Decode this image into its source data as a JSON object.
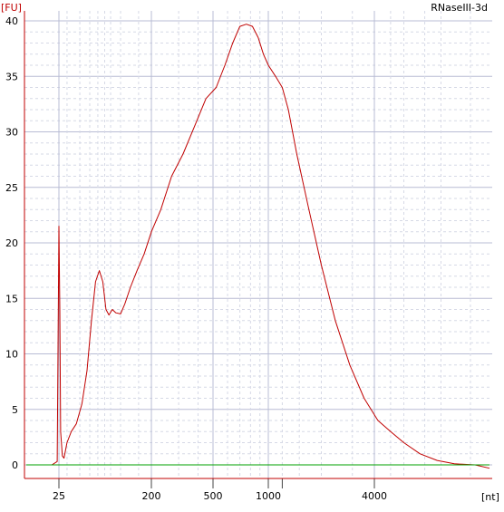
{
  "chart_data": {
    "type": "line",
    "title": "RNaseIII-3d",
    "ylabel": "[FU]",
    "xlabel": "[nt]",
    "x_scale": "log (electropherogram size axis)",
    "ylim": [
      0,
      40
    ],
    "y_ticks": [
      0,
      5,
      10,
      15,
      20,
      25,
      30,
      35,
      40
    ],
    "x_tick_labels": [
      "25",
      "200",
      "500",
      "1000",
      "4000"
    ],
    "grid": true,
    "series": [
      {
        "color": "#c00000",
        "x_unit": "nt",
        "points": [
          [
            17,
            0
          ],
          [
            23,
            0
          ],
          [
            24.5,
            0.3
          ],
          [
            25,
            21.5
          ],
          [
            25.5,
            14
          ],
          [
            26,
            3
          ],
          [
            27,
            0.8
          ],
          [
            28,
            0.6
          ],
          [
            30,
            2
          ],
          [
            33,
            3
          ],
          [
            37,
            3.7
          ],
          [
            42,
            5.5
          ],
          [
            47,
            8.5
          ],
          [
            52,
            13
          ],
          [
            57,
            16.5
          ],
          [
            62,
            17.5
          ],
          [
            67,
            16.5
          ],
          [
            72,
            14
          ],
          [
            77,
            13.5
          ],
          [
            83,
            14
          ],
          [
            90,
            13.7
          ],
          [
            100,
            13.6
          ],
          [
            110,
            14.5
          ],
          [
            125,
            16
          ],
          [
            145,
            17.5
          ],
          [
            170,
            19
          ],
          [
            200,
            21
          ],
          [
            230,
            23
          ],
          [
            270,
            26
          ],
          [
            320,
            28
          ],
          [
            380,
            30.5
          ],
          [
            450,
            33
          ],
          [
            520,
            34
          ],
          [
            580,
            36
          ],
          [
            640,
            38
          ],
          [
            700,
            39.5
          ],
          [
            760,
            39.7
          ],
          [
            820,
            39.5
          ],
          [
            880,
            38.5
          ],
          [
            940,
            37
          ],
          [
            1000,
            36
          ],
          [
            1100,
            35
          ],
          [
            1200,
            34
          ],
          [
            1300,
            32
          ],
          [
            1450,
            28
          ],
          [
            1700,
            23
          ],
          [
            2000,
            18
          ],
          [
            2400,
            13
          ],
          [
            2900,
            9
          ],
          [
            3500,
            6
          ],
          [
            4200,
            4
          ],
          [
            5000,
            3
          ],
          [
            6000,
            2
          ],
          [
            7500,
            1
          ],
          [
            9500,
            0.4
          ],
          [
            12000,
            0.1
          ],
          [
            16000,
            0
          ],
          [
            19500,
            -0.3
          ]
        ]
      },
      {
        "color": "#00a000",
        "role": "baseline",
        "points": [
          [
            17,
            0
          ],
          [
            19500,
            0
          ]
        ]
      }
    ]
  }
}
